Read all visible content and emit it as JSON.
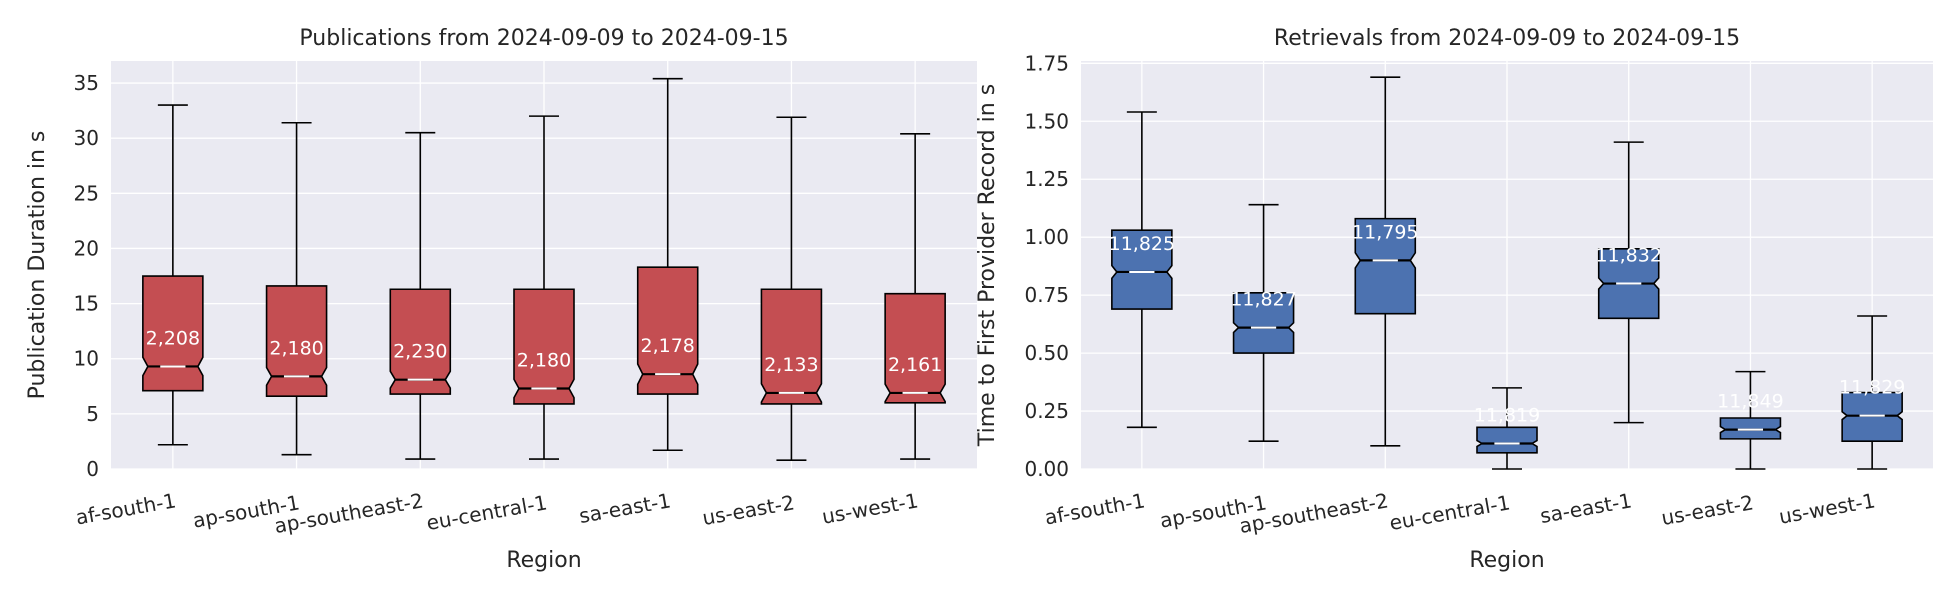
{
  "chart_data": [
    {
      "type": "box",
      "title": "Publications from 2024-09-09 to 2024-09-15",
      "xlabel": "Region",
      "ylabel": "Publication Duration in s",
      "ylim": [
        0,
        37
      ],
      "yticks": [
        0,
        5,
        10,
        15,
        20,
        25,
        30,
        35
      ],
      "ytick_labels": [
        "0",
        "5",
        "10",
        "15",
        "20",
        "25",
        "30",
        "35"
      ],
      "box_color": "#c44e52",
      "notched": true,
      "grid": true,
      "categories": [
        "af-south-1",
        "ap-south-1",
        "ap-southeast-2",
        "eu-central-1",
        "sa-east-1",
        "us-east-2",
        "us-west-1"
      ],
      "boxes": [
        {
          "whislo": 2.2,
          "q1": 7.1,
          "med": 9.3,
          "q3": 17.5,
          "whishi": 33.0,
          "count_label": "2,208"
        },
        {
          "whislo": 1.3,
          "q1": 6.6,
          "med": 8.4,
          "q3": 16.6,
          "whishi": 31.4,
          "count_label": "2,180"
        },
        {
          "whislo": 0.9,
          "q1": 6.8,
          "med": 8.1,
          "q3": 16.3,
          "whishi": 30.5,
          "count_label": "2,230"
        },
        {
          "whislo": 0.9,
          "q1": 5.9,
          "med": 7.3,
          "q3": 16.3,
          "whishi": 32.0,
          "count_label": "2,180"
        },
        {
          "whislo": 1.7,
          "q1": 6.8,
          "med": 8.6,
          "q3": 18.3,
          "whishi": 35.4,
          "count_label": "2,178"
        },
        {
          "whislo": 0.8,
          "q1": 5.9,
          "med": 6.9,
          "q3": 16.3,
          "whishi": 31.9,
          "count_label": "2,133"
        },
        {
          "whislo": 0.9,
          "q1": 6.0,
          "med": 6.9,
          "q3": 15.9,
          "whishi": 30.4,
          "count_label": "2,161"
        }
      ]
    },
    {
      "type": "box",
      "title": "Retrievals from 2024-09-09 to 2024-09-15",
      "xlabel": "Region",
      "ylabel": "Time to First Provider Record in s",
      "ylim": [
        0,
        1.76
      ],
      "yticks": [
        0,
        0.25,
        0.5,
        0.75,
        1.0,
        1.25,
        1.5,
        1.75
      ],
      "ytick_labels": [
        "0.00",
        "0.25",
        "0.50",
        "0.75",
        "1.00",
        "1.25",
        "1.50",
        "1.75"
      ],
      "box_color": "#4c72b0",
      "notched": true,
      "grid": true,
      "categories": [
        "af-south-1",
        "ap-south-1",
        "ap-southeast-2",
        "eu-central-1",
        "sa-east-1",
        "us-east-2",
        "us-west-1"
      ],
      "boxes": [
        {
          "whislo": 0.18,
          "q1": 0.69,
          "med": 0.85,
          "q3": 1.03,
          "whishi": 1.54,
          "count_label": "11,825"
        },
        {
          "whislo": 0.12,
          "q1": 0.5,
          "med": 0.61,
          "q3": 0.76,
          "whishi": 1.14,
          "count_label": "11,827"
        },
        {
          "whislo": 0.1,
          "q1": 0.67,
          "med": 0.9,
          "q3": 1.08,
          "whishi": 1.69,
          "count_label": "11,795"
        },
        {
          "whislo": 0.0,
          "q1": 0.07,
          "med": 0.11,
          "q3": 0.18,
          "whishi": 0.35,
          "count_label": "11,819"
        },
        {
          "whislo": 0.2,
          "q1": 0.65,
          "med": 0.8,
          "q3": 0.95,
          "whishi": 1.41,
          "count_label": "11,832"
        },
        {
          "whislo": 0.0,
          "q1": 0.13,
          "med": 0.17,
          "q3": 0.22,
          "whishi": 0.42,
          "count_label": "11,849"
        },
        {
          "whislo": 0.0,
          "q1": 0.12,
          "med": 0.23,
          "q3": 0.33,
          "whishi": 0.66,
          "count_label": "11,829"
        }
      ]
    }
  ]
}
